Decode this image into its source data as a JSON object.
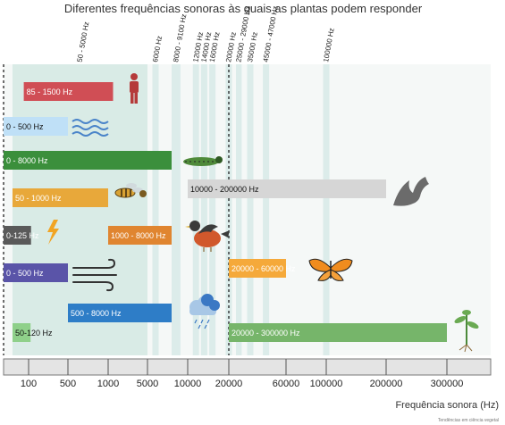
{
  "chart_data": {
    "type": "bar",
    "title": "Diferentes frequências sonoras às quais as plantas podem responder",
    "xlabel": "Frequência sonora (Hz)",
    "credit": "Tendências em ciência vegetal",
    "x_scale": "nonlinear",
    "x_ticks": [
      "100",
      "500",
      "1000",
      "5000",
      "10000",
      "20000",
      "60000",
      "100000",
      "200000",
      "300000"
    ],
    "top_labels": [
      "50 - 5000 Hz",
      "8000 - 9100 Hz",
      "6000 Hz",
      "12000 Hz",
      "14000 Hz",
      "16000 Hz",
      "20000 Hz",
      "25000 - 29000 Hz",
      "35000 Hz",
      "45000 - 47000 Hz",
      "100000 Hz"
    ],
    "shaded_ranges": [
      {
        "label": "50 - 5000 Hz",
        "from": 50,
        "to": 5000
      },
      {
        "label": "8000 - 9100 Hz",
        "from": 8000,
        "to": 9100
      },
      {
        "label": "6000 Hz",
        "from": 6000,
        "to": 6000
      },
      {
        "label": "12000 Hz",
        "from": 12000,
        "to": 12000
      },
      {
        "label": "14000 Hz",
        "from": 14000,
        "to": 14000
      },
      {
        "label": "16000 Hz",
        "from": 16000,
        "to": 16000
      },
      {
        "label": "20000 Hz",
        "from": 20000,
        "to": 20000
      },
      {
        "label": "25000 - 29000 Hz",
        "from": 25000,
        "to": 29000
      },
      {
        "label": "35000 Hz",
        "from": 35000,
        "to": 35000
      },
      {
        "label": "45000 - 47000 Hz",
        "from": 45000,
        "to": 47000
      },
      {
        "label": "100000 Hz",
        "from": 100000,
        "to": 100000
      }
    ],
    "dashed_markers": [
      20,
      20000
    ],
    "series": [
      {
        "label": "85 - 1500 Hz",
        "from": 85,
        "to": 1500,
        "color": "#d04e55",
        "source": "person-icon"
      },
      {
        "label": "0 - 500 Hz",
        "from": 0,
        "to": 500,
        "color": "#bfe0f7",
        "source": "water-waves-icon"
      },
      {
        "label": "0 - 8000 Hz",
        "from": 0,
        "to": 8000,
        "color": "#3b8f3c",
        "source": "caterpillar-icon"
      },
      {
        "label": "50 - 1000 Hz",
        "from": 50,
        "to": 1000,
        "color": "#e8a83a",
        "source": "bee-icon"
      },
      {
        "label": "10000 - 200000 Hz",
        "from": 10000,
        "to": 200000,
        "color": "#d6d6d6",
        "source": "bat-icon"
      },
      {
        "label": "0-125 Hz",
        "from": 0,
        "to": 125,
        "color": "#5a5a5a",
        "source": "lightning-icon"
      },
      {
        "label": "1000 - 8000 Hz",
        "from": 1000,
        "to": 8000,
        "color": "#e08530",
        "source": "robin-icon"
      },
      {
        "label": "0 - 500 Hz",
        "from": 0,
        "to": 500,
        "color": "#5a54a8",
        "source": "wind-icon"
      },
      {
        "label": "20000 - 60000 Hz",
        "from": 20000,
        "to": 60000,
        "color": "#f5a93a",
        "source": "butterfly-icon"
      },
      {
        "label": "500 - 8000 Hz",
        "from": 500,
        "to": 8000,
        "color": "#2e7dc7",
        "source": "rain-cloud-icon"
      },
      {
        "label": "50-120 Hz",
        "from": 50,
        "to": 120,
        "color": "#8fd08a",
        "source": ""
      },
      {
        "label": "20000 - 300000 Hz",
        "from": 20000,
        "to": 300000,
        "color": "#76b56a",
        "source": "plant-icon"
      }
    ]
  }
}
